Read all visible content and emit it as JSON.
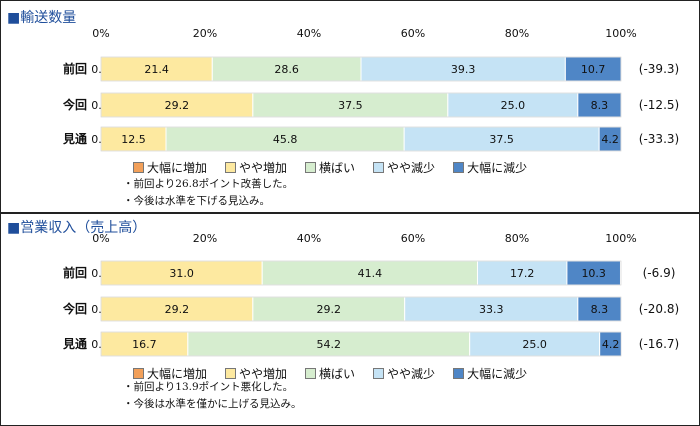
{
  "colors": {
    "big_increase": "#f2a05a",
    "slight_increase": "#fde9a0",
    "flat": "#d6edcf",
    "slight_decrease": "#c5e3f5",
    "big_decrease": "#4f86c6"
  },
  "legend": [
    "大幅に増加",
    "やや増加",
    "横ばい",
    "やや減少",
    "大幅に減少"
  ],
  "chart_data": [
    {
      "type": "bar",
      "orientation": "horizontal",
      "stacked": true,
      "title": "■輸送数量",
      "categories": [
        "前回",
        "今回",
        "見通"
      ],
      "xlim": [
        0,
        100
      ],
      "xticks": [
        "0%",
        "20%",
        "40%",
        "60%",
        "80%",
        "100%"
      ],
      "series": [
        {
          "name": "大幅に増加",
          "values": [
            0.0,
            0.0,
            0.0
          ]
        },
        {
          "name": "やや増加",
          "values": [
            21.4,
            29.2,
            12.5
          ]
        },
        {
          "name": "横ばい",
          "values": [
            28.6,
            37.5,
            45.8
          ]
        },
        {
          "name": "やや減少",
          "values": [
            39.3,
            25.0,
            37.5
          ]
        },
        {
          "name": "大幅に減少",
          "values": [
            10.7,
            8.3,
            4.2
          ]
        }
      ],
      "labels": [
        [
          "0.0",
          "21.4",
          "28.6",
          "39.3",
          "10.7"
        ],
        [
          "0.0",
          "29.2",
          "37.5",
          "25.0",
          "8.3"
        ],
        [
          "0.0",
          "12.5",
          "45.8",
          "37.5",
          "4.2"
        ]
      ],
      "di": [
        "(-39.3)",
        "(-12.5)",
        "(-33.3)"
      ],
      "notes": [
        "・前回より26.8ポイント改善した。",
        "・今後は水準を下げる見込み。"
      ]
    },
    {
      "type": "bar",
      "orientation": "horizontal",
      "stacked": true,
      "title": "■営業収入（売上高）",
      "categories": [
        "前回",
        "今回",
        "見通"
      ],
      "xlim": [
        0,
        100
      ],
      "xticks": [
        "0%",
        "20%",
        "40%",
        "60%",
        "80%",
        "100%"
      ],
      "series": [
        {
          "name": "大幅に増加",
          "values": [
            0.0,
            0.0,
            0.0
          ]
        },
        {
          "name": "やや増加",
          "values": [
            31.0,
            29.2,
            16.7
          ]
        },
        {
          "name": "横ばい",
          "values": [
            41.4,
            29.2,
            54.2
          ]
        },
        {
          "name": "やや減少",
          "values": [
            17.2,
            33.3,
            25.0
          ]
        },
        {
          "name": "大幅に減少",
          "values": [
            10.3,
            8.3,
            4.2
          ]
        }
      ],
      "labels": [
        [
          "0.0",
          "31.0",
          "41.4",
          "17.2",
          "10.3"
        ],
        [
          "0.0",
          "29.2",
          "29.2",
          "33.3",
          "8.3"
        ],
        [
          "0.0",
          "16.7",
          "54.2",
          "25.0",
          "4.2"
        ]
      ],
      "di": [
        "(-6.9)",
        "(-20.8)",
        "(-16.7)"
      ],
      "notes": [
        "・前回より13.9ポイント悪化した。",
        "・今後は水準を僅かに上げる見込み。"
      ]
    }
  ]
}
